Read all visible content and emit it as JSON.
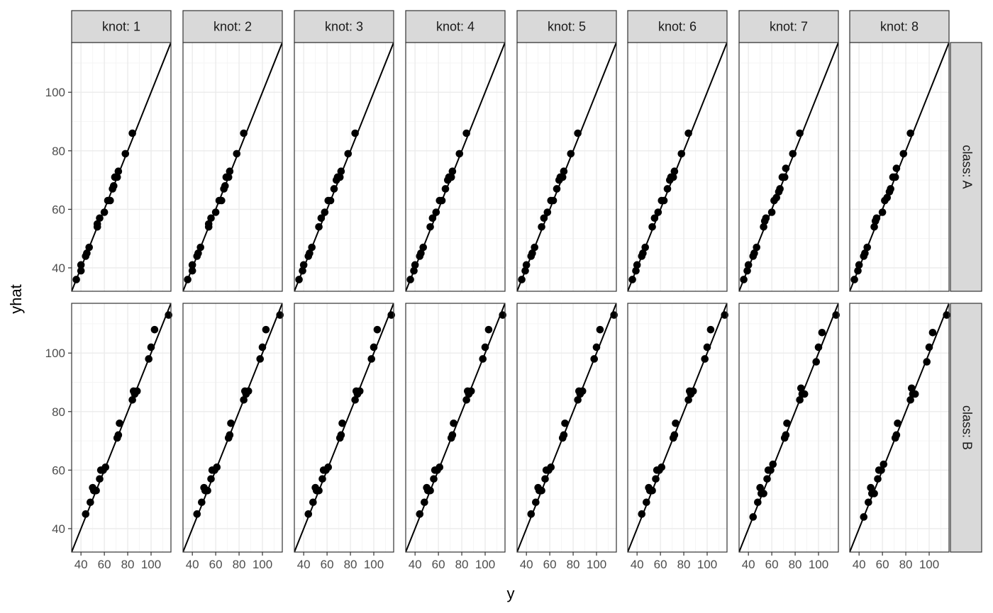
{
  "chart_data": {
    "type": "scatter",
    "facet_layout": "grid",
    "xlabel": "y",
    "ylabel": "yhat",
    "xlim": [
      32,
      117
    ],
    "ylim": [
      32,
      117
    ],
    "x_ticks": [
      40,
      60,
      80,
      100
    ],
    "y_ticks": [
      40,
      60,
      80,
      100
    ],
    "x_tick_labels": [
      "40",
      "60",
      "80",
      "100"
    ],
    "y_tick_labels": [
      "40",
      "60",
      "80",
      "100"
    ],
    "grid": true,
    "legend": "none",
    "reference_line": {
      "intercept": 0,
      "slope": 1
    },
    "col_labels": [
      "knot: 1",
      "knot: 2",
      "knot: 3",
      "knot: 4",
      "knot: 5",
      "knot: 6",
      "knot: 7",
      "knot: 8"
    ],
    "row_labels": [
      "class: A",
      "class: B"
    ],
    "colors": {
      "strip_fill": "#d9d9d9",
      "grid_major": "#ebebeb",
      "grid_minor": "#f5f5f5",
      "point": "#000000",
      "line": "#000000",
      "border": "#333333"
    },
    "panels": [
      {
        "row": 0,
        "col": 0,
        "points": [
          [
            36,
            36
          ],
          [
            40,
            39
          ],
          [
            40,
            41
          ],
          [
            44,
            44
          ],
          [
            45,
            45
          ],
          [
            47,
            47
          ],
          [
            54,
            54
          ],
          [
            54,
            55
          ],
          [
            56,
            57
          ],
          [
            60,
            59
          ],
          [
            63,
            63
          ],
          [
            65,
            63
          ],
          [
            67,
            67
          ],
          [
            68,
            68
          ],
          [
            69,
            71
          ],
          [
            71,
            71
          ],
          [
            72,
            73
          ],
          [
            78,
            79
          ],
          [
            84,
            86
          ]
        ]
      },
      {
        "row": 0,
        "col": 1,
        "points": [
          [
            36,
            36
          ],
          [
            40,
            39
          ],
          [
            40,
            41
          ],
          [
            44,
            44
          ],
          [
            45,
            45
          ],
          [
            47,
            47
          ],
          [
            54,
            54
          ],
          [
            54,
            55
          ],
          [
            56,
            57
          ],
          [
            60,
            59
          ],
          [
            63,
            63
          ],
          [
            65,
            63
          ],
          [
            67,
            67
          ],
          [
            68,
            68
          ],
          [
            69,
            71
          ],
          [
            71,
            71
          ],
          [
            72,
            73
          ],
          [
            78,
            79
          ],
          [
            84,
            86
          ]
        ]
      },
      {
        "row": 0,
        "col": 2,
        "points": [
          [
            36,
            36
          ],
          [
            39,
            39
          ],
          [
            40,
            41
          ],
          [
            44,
            44
          ],
          [
            45,
            45
          ],
          [
            47,
            47
          ],
          [
            53,
            54
          ],
          [
            55,
            57
          ],
          [
            58,
            59
          ],
          [
            61,
            63
          ],
          [
            63,
            63
          ],
          [
            66,
            67
          ],
          [
            68,
            70
          ],
          [
            69,
            71
          ],
          [
            71,
            71
          ],
          [
            72,
            73
          ],
          [
            78,
            79
          ],
          [
            84,
            86
          ]
        ]
      },
      {
        "row": 0,
        "col": 3,
        "points": [
          [
            36,
            36
          ],
          [
            39,
            39
          ],
          [
            40,
            41
          ],
          [
            44,
            44
          ],
          [
            45,
            45
          ],
          [
            47,
            47
          ],
          [
            53,
            54
          ],
          [
            55,
            57
          ],
          [
            58,
            59
          ],
          [
            61,
            63
          ],
          [
            63,
            63
          ],
          [
            66,
            67
          ],
          [
            68,
            70
          ],
          [
            69,
            71
          ],
          [
            71,
            71
          ],
          [
            72,
            73
          ],
          [
            78,
            79
          ],
          [
            84,
            86
          ]
        ]
      },
      {
        "row": 0,
        "col": 4,
        "points": [
          [
            36,
            36
          ],
          [
            39,
            39
          ],
          [
            40,
            41
          ],
          [
            44,
            44
          ],
          [
            45,
            45
          ],
          [
            47,
            47
          ],
          [
            53,
            54
          ],
          [
            55,
            57
          ],
          [
            58,
            59
          ],
          [
            61,
            63
          ],
          [
            63,
            63
          ],
          [
            66,
            67
          ],
          [
            68,
            70
          ],
          [
            69,
            71
          ],
          [
            71,
            71
          ],
          [
            72,
            73
          ],
          [
            78,
            79
          ],
          [
            84,
            86
          ]
        ]
      },
      {
        "row": 0,
        "col": 5,
        "points": [
          [
            36,
            36
          ],
          [
            39,
            39
          ],
          [
            40,
            41
          ],
          [
            44,
            44
          ],
          [
            45,
            45
          ],
          [
            47,
            47
          ],
          [
            53,
            54
          ],
          [
            55,
            57
          ],
          [
            58,
            59
          ],
          [
            61,
            63
          ],
          [
            63,
            63
          ],
          [
            66,
            67
          ],
          [
            68,
            70
          ],
          [
            69,
            71
          ],
          [
            71,
            71
          ],
          [
            72,
            73
          ],
          [
            78,
            79
          ],
          [
            84,
            86
          ]
        ]
      },
      {
        "row": 0,
        "col": 6,
        "points": [
          [
            36,
            36
          ],
          [
            39,
            39
          ],
          [
            40,
            41
          ],
          [
            44,
            44
          ],
          [
            45,
            45
          ],
          [
            47,
            47
          ],
          [
            53,
            54
          ],
          [
            54,
            56
          ],
          [
            55,
            57
          ],
          [
            60,
            59
          ],
          [
            62,
            63
          ],
          [
            64,
            64
          ],
          [
            66,
            66
          ],
          [
            67,
            67
          ],
          [
            69,
            71
          ],
          [
            71,
            71
          ],
          [
            72,
            74
          ],
          [
            78,
            79
          ],
          [
            84,
            86
          ]
        ]
      },
      {
        "row": 0,
        "col": 7,
        "points": [
          [
            36,
            36
          ],
          [
            39,
            39
          ],
          [
            40,
            41
          ],
          [
            44,
            44
          ],
          [
            45,
            45
          ],
          [
            47,
            47
          ],
          [
            53,
            54
          ],
          [
            54,
            56
          ],
          [
            55,
            57
          ],
          [
            60,
            59
          ],
          [
            62,
            63
          ],
          [
            64,
            64
          ],
          [
            66,
            66
          ],
          [
            67,
            67
          ],
          [
            69,
            71
          ],
          [
            71,
            71
          ],
          [
            72,
            74
          ],
          [
            78,
            79
          ],
          [
            84,
            86
          ]
        ]
      },
      {
        "row": 1,
        "col": 0,
        "points": [
          [
            44,
            45
          ],
          [
            48,
            49
          ],
          [
            50,
            54
          ],
          [
            51,
            53
          ],
          [
            53,
            53
          ],
          [
            56,
            57
          ],
          [
            57,
            60
          ],
          [
            59,
            60
          ],
          [
            61,
            61
          ],
          [
            71,
            71
          ],
          [
            72,
            72
          ],
          [
            73,
            76
          ],
          [
            84,
            84
          ],
          [
            85,
            87
          ],
          [
            86,
            86
          ],
          [
            88,
            87
          ],
          [
            98,
            98
          ],
          [
            100,
            102
          ],
          [
            103,
            108
          ],
          [
            115,
            113
          ]
        ]
      },
      {
        "row": 1,
        "col": 1,
        "points": [
          [
            44,
            45
          ],
          [
            48,
            49
          ],
          [
            50,
            54
          ],
          [
            51,
            53
          ],
          [
            53,
            53
          ],
          [
            56,
            57
          ],
          [
            57,
            60
          ],
          [
            59,
            60
          ],
          [
            61,
            61
          ],
          [
            71,
            71
          ],
          [
            72,
            72
          ],
          [
            73,
            76
          ],
          [
            84,
            84
          ],
          [
            85,
            87
          ],
          [
            86,
            86
          ],
          [
            88,
            87
          ],
          [
            98,
            98
          ],
          [
            100,
            102
          ],
          [
            103,
            108
          ],
          [
            115,
            113
          ]
        ]
      },
      {
        "row": 1,
        "col": 2,
        "points": [
          [
            44,
            45
          ],
          [
            48,
            49
          ],
          [
            50,
            54
          ],
          [
            51,
            53
          ],
          [
            53,
            53
          ],
          [
            56,
            57
          ],
          [
            57,
            60
          ],
          [
            59,
            60
          ],
          [
            61,
            61
          ],
          [
            71,
            71
          ],
          [
            72,
            72
          ],
          [
            73,
            76
          ],
          [
            84,
            84
          ],
          [
            85,
            87
          ],
          [
            86,
            86
          ],
          [
            88,
            87
          ],
          [
            98,
            98
          ],
          [
            100,
            102
          ],
          [
            103,
            108
          ],
          [
            115,
            113
          ]
        ]
      },
      {
        "row": 1,
        "col": 3,
        "points": [
          [
            44,
            45
          ],
          [
            48,
            49
          ],
          [
            50,
            54
          ],
          [
            51,
            53
          ],
          [
            53,
            53
          ],
          [
            56,
            57
          ],
          [
            57,
            60
          ],
          [
            59,
            60
          ],
          [
            61,
            61
          ],
          [
            71,
            71
          ],
          [
            72,
            72
          ],
          [
            73,
            76
          ],
          [
            84,
            84
          ],
          [
            85,
            87
          ],
          [
            86,
            86
          ],
          [
            88,
            87
          ],
          [
            98,
            98
          ],
          [
            100,
            102
          ],
          [
            103,
            108
          ],
          [
            115,
            113
          ]
        ]
      },
      {
        "row": 1,
        "col": 4,
        "points": [
          [
            44,
            45
          ],
          [
            48,
            49
          ],
          [
            50,
            54
          ],
          [
            51,
            53
          ],
          [
            53,
            53
          ],
          [
            56,
            57
          ],
          [
            57,
            60
          ],
          [
            59,
            60
          ],
          [
            61,
            61
          ],
          [
            71,
            71
          ],
          [
            72,
            72
          ],
          [
            73,
            76
          ],
          [
            84,
            84
          ],
          [
            85,
            87
          ],
          [
            86,
            86
          ],
          [
            88,
            87
          ],
          [
            98,
            98
          ],
          [
            100,
            102
          ],
          [
            103,
            108
          ],
          [
            115,
            113
          ]
        ]
      },
      {
        "row": 1,
        "col": 5,
        "points": [
          [
            44,
            45
          ],
          [
            48,
            49
          ],
          [
            50,
            54
          ],
          [
            51,
            53
          ],
          [
            53,
            53
          ],
          [
            56,
            57
          ],
          [
            57,
            60
          ],
          [
            59,
            60
          ],
          [
            61,
            61
          ],
          [
            71,
            71
          ],
          [
            72,
            72
          ],
          [
            73,
            76
          ],
          [
            84,
            84
          ],
          [
            85,
            87
          ],
          [
            86,
            86
          ],
          [
            88,
            87
          ],
          [
            98,
            98
          ],
          [
            100,
            102
          ],
          [
            103,
            108
          ],
          [
            115,
            113
          ]
        ]
      },
      {
        "row": 1,
        "col": 6,
        "points": [
          [
            44,
            44
          ],
          [
            48,
            49
          ],
          [
            50,
            54
          ],
          [
            51,
            52
          ],
          [
            53,
            52
          ],
          [
            56,
            57
          ],
          [
            57,
            60
          ],
          [
            59,
            60
          ],
          [
            61,
            62
          ],
          [
            71,
            71
          ],
          [
            72,
            72
          ],
          [
            73,
            76
          ],
          [
            84,
            84
          ],
          [
            85,
            88
          ],
          [
            86,
            86
          ],
          [
            88,
            86
          ],
          [
            98,
            97
          ],
          [
            100,
            102
          ],
          [
            103,
            107
          ],
          [
            115,
            113
          ]
        ]
      },
      {
        "row": 1,
        "col": 7,
        "points": [
          [
            44,
            44
          ],
          [
            48,
            49
          ],
          [
            50,
            54
          ],
          [
            51,
            52
          ],
          [
            53,
            52
          ],
          [
            56,
            57
          ],
          [
            57,
            60
          ],
          [
            59,
            60
          ],
          [
            61,
            62
          ],
          [
            71,
            71
          ],
          [
            72,
            72
          ],
          [
            73,
            76
          ],
          [
            84,
            84
          ],
          [
            85,
            88
          ],
          [
            86,
            86
          ],
          [
            88,
            86
          ],
          [
            98,
            97
          ],
          [
            100,
            102
          ],
          [
            103,
            107
          ],
          [
            115,
            113
          ]
        ]
      }
    ]
  }
}
